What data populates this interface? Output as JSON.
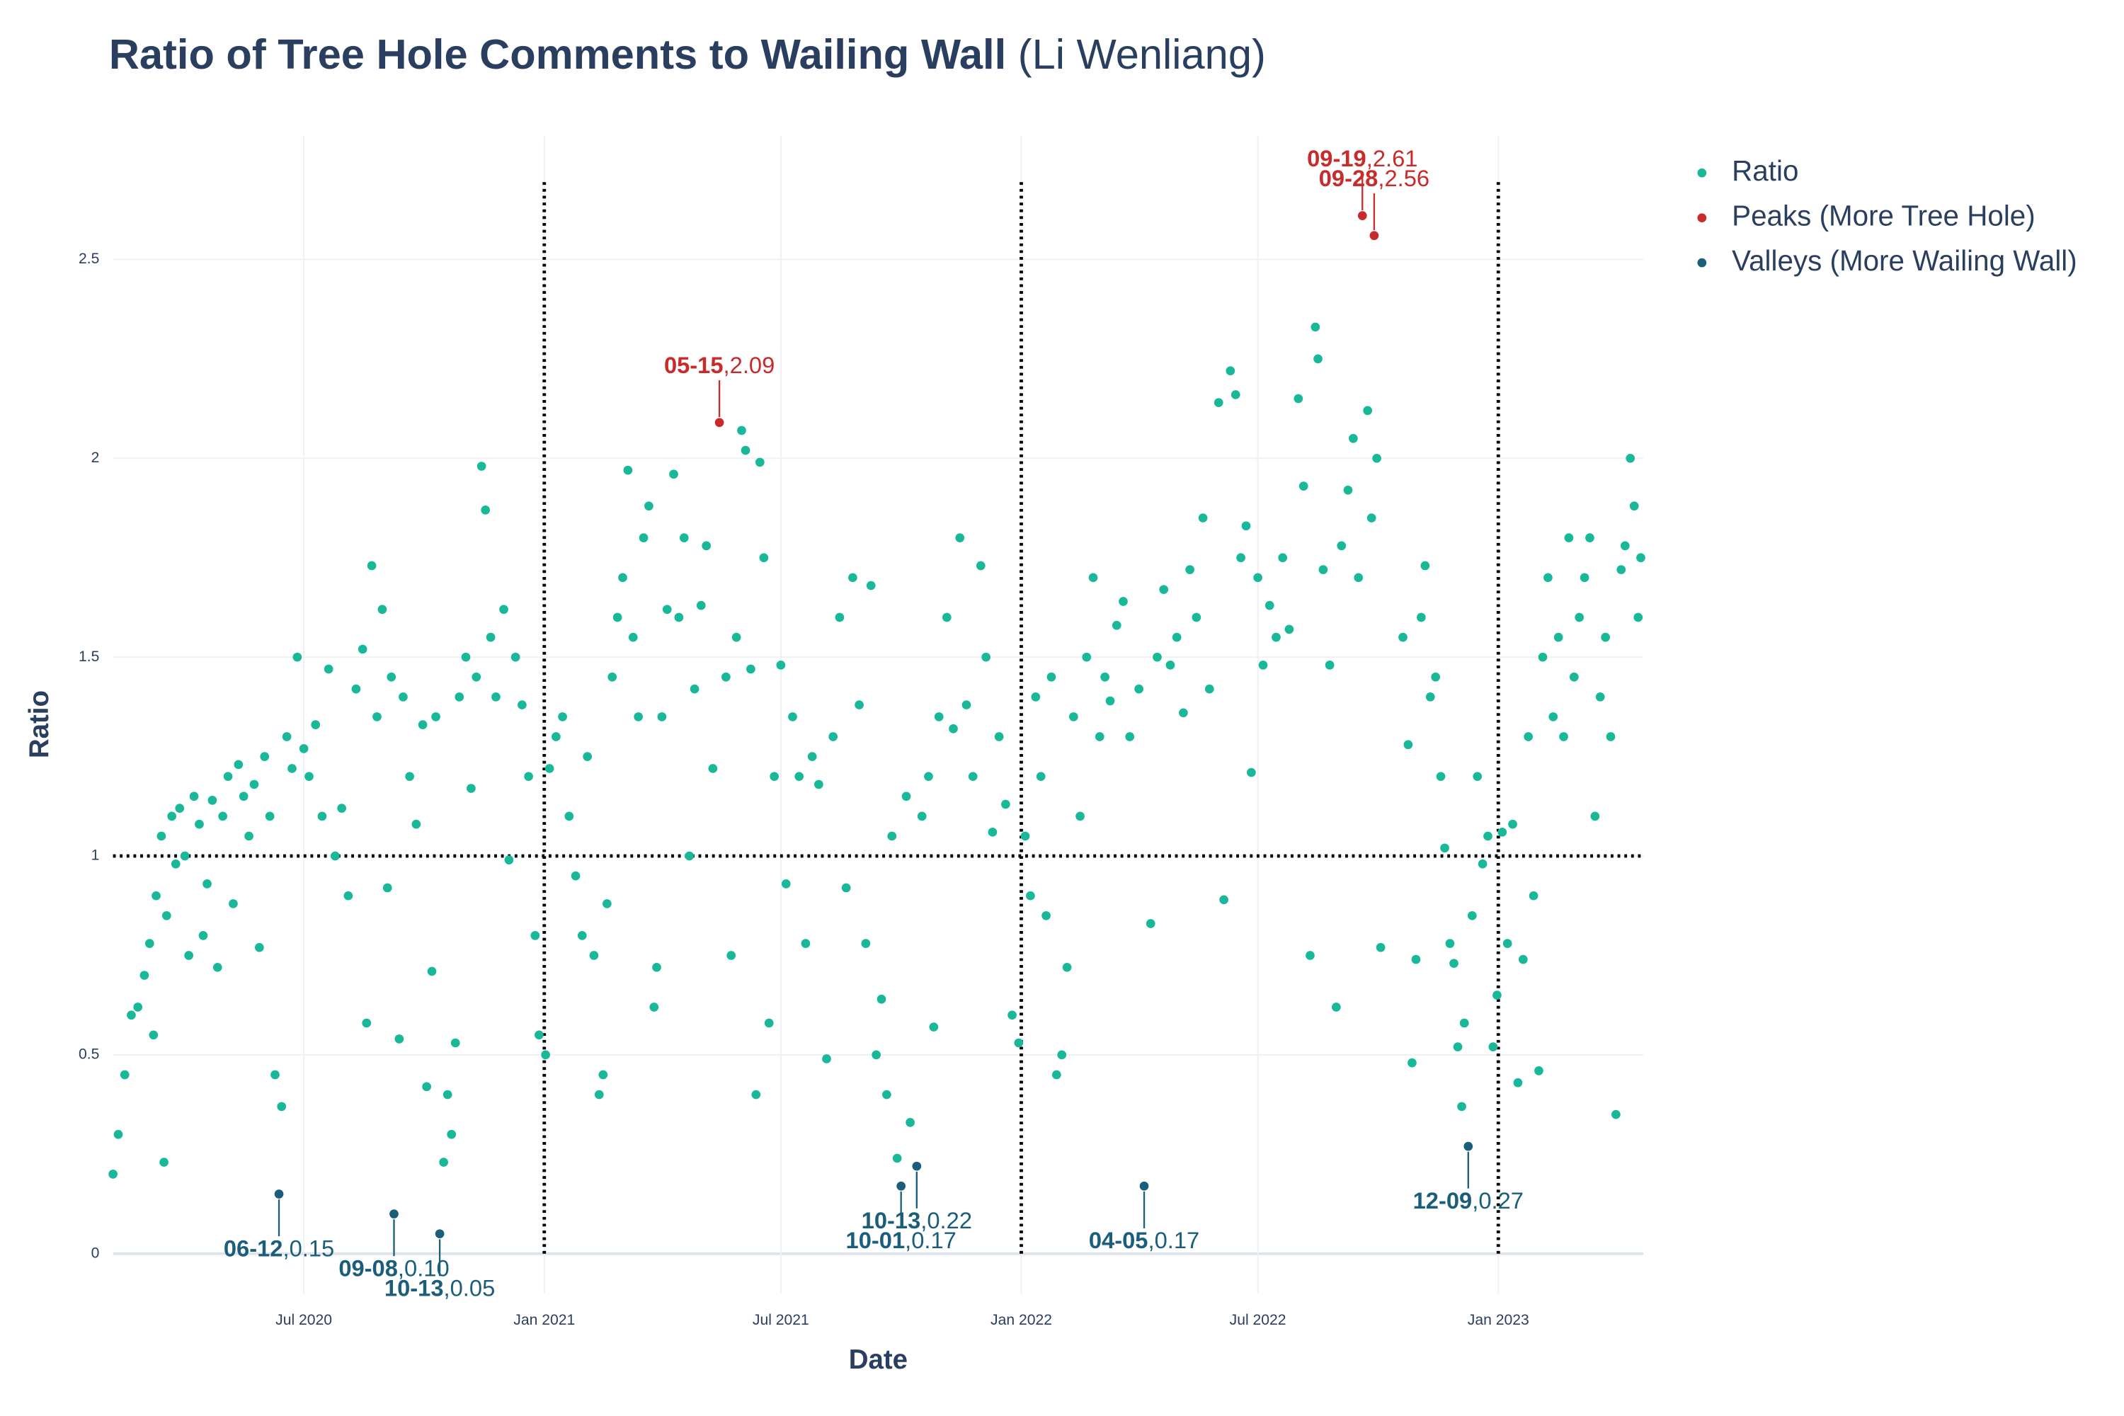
{
  "chart_data": {
    "type": "scatter",
    "title": "Ratio of Tree Hole Comments to Wailing Wall",
    "title_suffix": "(Li Wenliang)",
    "x_label": "Date",
    "y_label": "Ratio",
    "xlim": [
      "2020-02-06",
      "2023-04-22"
    ],
    "ylim": [
      -0.1,
      2.81
    ],
    "xticks": [
      {
        "value": "2020-07-01",
        "label": "Jul 2020"
      },
      {
        "value": "2021-01-01",
        "label": "Jan 2021"
      },
      {
        "value": "2021-07-01",
        "label": "Jul 2021"
      },
      {
        "value": "2022-01-01",
        "label": "Jan 2022"
      },
      {
        "value": "2022-07-01",
        "label": "Jul 2022"
      },
      {
        "value": "2023-01-01",
        "label": "Jan 2023"
      }
    ],
    "yticks": [
      0,
      0.5,
      1,
      1.5,
      2,
      2.5
    ],
    "grid": true,
    "hline": 1,
    "vlines": [
      "2021-01-01",
      "2022-01-01",
      "2023-01-01"
    ],
    "vline_range": [
      0,
      2.7
    ],
    "legend": "right",
    "label_separator": ",",
    "series": [
      {
        "name": "Ratio",
        "color": "#19b898",
        "x": [
          "2020-02-06",
          "2020-02-10",
          "2020-02-15",
          "2020-02-20",
          "2020-02-25",
          "2020-03-01",
          "2020-03-05",
          "2020-03-08",
          "2020-03-10",
          "2020-03-14",
          "2020-03-16",
          "2020-03-18",
          "2020-03-22",
          "2020-03-25",
          "2020-03-28",
          "2020-04-01",
          "2020-04-04",
          "2020-04-08",
          "2020-04-12",
          "2020-04-15",
          "2020-04-18",
          "2020-04-22",
          "2020-04-26",
          "2020-04-30",
          "2020-05-04",
          "2020-05-08",
          "2020-05-12",
          "2020-05-16",
          "2020-05-20",
          "2020-05-24",
          "2020-05-28",
          "2020-06-01",
          "2020-06-05",
          "2020-06-09",
          "2020-06-14",
          "2020-06-18",
          "2020-06-22",
          "2020-06-26",
          "2020-07-01",
          "2020-07-05",
          "2020-07-10",
          "2020-07-15",
          "2020-07-20",
          "2020-07-25",
          "2020-07-30",
          "2020-08-04",
          "2020-08-10",
          "2020-08-15",
          "2020-08-18",
          "2020-08-22",
          "2020-08-26",
          "2020-08-30",
          "2020-09-03",
          "2020-09-06",
          "2020-09-12",
          "2020-09-15",
          "2020-09-20",
          "2020-09-25",
          "2020-09-30",
          "2020-10-03",
          "2020-10-07",
          "2020-10-10",
          "2020-10-16",
          "2020-10-19",
          "2020-10-22",
          "2020-10-25",
          "2020-10-28",
          "2020-11-02",
          "2020-11-06",
          "2020-11-10",
          "2020-11-14",
          "2020-11-17",
          "2020-11-21",
          "2020-11-25",
          "2020-12-01",
          "2020-12-05",
          "2020-12-10",
          "2020-12-15",
          "2020-12-20",
          "2020-12-25",
          "2020-12-28",
          "2021-01-02",
          "2021-01-05",
          "2021-01-10",
          "2021-01-15",
          "2021-01-20",
          "2021-01-25",
          "2021-01-30",
          "2021-02-03",
          "2021-02-08",
          "2021-02-12",
          "2021-02-15",
          "2021-02-18",
          "2021-02-22",
          "2021-02-26",
          "2021-03-02",
          "2021-03-06",
          "2021-03-10",
          "2021-03-14",
          "2021-03-18",
          "2021-03-22",
          "2021-03-26",
          "2021-03-28",
          "2021-04-01",
          "2021-04-05",
          "2021-04-10",
          "2021-04-14",
          "2021-04-18",
          "2021-04-22",
          "2021-04-26",
          "2021-05-01",
          "2021-05-05",
          "2021-05-10",
          "2021-05-20",
          "2021-05-24",
          "2021-05-28",
          "2021-06-01",
          "2021-06-04",
          "2021-06-08",
          "2021-06-12",
          "2021-06-15",
          "2021-06-18",
          "2021-06-22",
          "2021-06-26",
          "2021-07-01",
          "2021-07-05",
          "2021-07-10",
          "2021-07-15",
          "2021-07-20",
          "2021-07-25",
          "2021-07-30",
          "2021-08-05",
          "2021-08-10",
          "2021-08-15",
          "2021-08-20",
          "2021-08-25",
          "2021-08-30",
          "2021-09-04",
          "2021-09-08",
          "2021-09-12",
          "2021-09-16",
          "2021-09-20",
          "2021-09-24",
          "2021-09-28",
          "2021-10-05",
          "2021-10-08",
          "2021-10-17",
          "2021-10-22",
          "2021-10-26",
          "2021-10-30",
          "2021-11-05",
          "2021-11-10",
          "2021-11-15",
          "2021-11-20",
          "2021-11-25",
          "2021-12-01",
          "2021-12-05",
          "2021-12-10",
          "2021-12-15",
          "2021-12-20",
          "2021-12-25",
          "2021-12-30",
          "2022-01-04",
          "2022-01-08",
          "2022-01-12",
          "2022-01-16",
          "2022-01-20",
          "2022-01-24",
          "2022-01-28",
          "2022-02-01",
          "2022-02-05",
          "2022-02-10",
          "2022-02-15",
          "2022-02-20",
          "2022-02-25",
          "2022-03-02",
          "2022-03-06",
          "2022-03-10",
          "2022-03-15",
          "2022-03-20",
          "2022-03-25",
          "2022-04-01",
          "2022-04-10",
          "2022-04-15",
          "2022-04-20",
          "2022-04-25",
          "2022-04-30",
          "2022-05-05",
          "2022-05-10",
          "2022-05-15",
          "2022-05-20",
          "2022-05-25",
          "2022-06-01",
          "2022-06-05",
          "2022-06-10",
          "2022-06-14",
          "2022-06-18",
          "2022-06-22",
          "2022-06-26",
          "2022-07-01",
          "2022-07-05",
          "2022-07-10",
          "2022-07-15",
          "2022-07-20",
          "2022-07-25",
          "2022-08-01",
          "2022-08-05",
          "2022-08-10",
          "2022-08-14",
          "2022-08-16",
          "2022-08-20",
          "2022-08-25",
          "2022-08-30",
          "2022-09-03",
          "2022-09-08",
          "2022-09-12",
          "2022-09-16",
          "2022-09-23",
          "2022-09-26",
          "2022-09-30",
          "2022-10-03",
          "2022-10-20",
          "2022-10-24",
          "2022-10-27",
          "2022-10-30",
          "2022-11-03",
          "2022-11-06",
          "2022-11-10",
          "2022-11-14",
          "2022-11-18",
          "2022-11-21",
          "2022-11-25",
          "2022-11-28",
          "2022-12-01",
          "2022-12-04",
          "2022-12-06",
          "2022-12-12",
          "2022-12-16",
          "2022-12-20",
          "2022-12-24",
          "2022-12-28",
          "2022-12-31",
          "2023-01-04",
          "2023-01-08",
          "2023-01-12",
          "2023-01-16",
          "2023-01-20",
          "2023-01-24",
          "2023-01-28",
          "2023-02-01",
          "2023-02-04",
          "2023-02-08",
          "2023-02-12",
          "2023-02-16",
          "2023-02-20",
          "2023-02-24",
          "2023-02-28",
          "2023-03-04",
          "2023-03-08",
          "2023-03-12",
          "2023-03-16",
          "2023-03-20",
          "2023-03-24",
          "2023-03-28",
          "2023-04-01",
          "2023-04-05",
          "2023-04-08",
          "2023-04-12",
          "2023-04-15",
          "2023-04-18",
          "2023-04-20"
        ],
        "values": [
          0.2,
          0.3,
          0.45,
          0.6,
          0.62,
          0.7,
          0.78,
          0.55,
          0.9,
          1.05,
          0.23,
          0.85,
          1.1,
          0.98,
          1.12,
          1.0,
          0.75,
          1.15,
          1.08,
          0.8,
          0.93,
          1.14,
          0.72,
          1.1,
          1.2,
          0.88,
          1.23,
          1.15,
          1.05,
          1.18,
          0.77,
          1.25,
          1.1,
          0.45,
          0.37,
          1.3,
          1.22,
          1.5,
          1.27,
          1.2,
          1.33,
          1.1,
          1.47,
          1.0,
          1.12,
          0.9,
          1.42,
          1.52,
          0.58,
          1.73,
          1.35,
          1.62,
          0.92,
          1.45,
          0.54,
          1.4,
          1.2,
          1.08,
          1.33,
          0.42,
          0.71,
          1.35,
          0.23,
          0.4,
          0.3,
          0.53,
          1.4,
          1.5,
          1.17,
          1.45,
          1.98,
          1.87,
          1.55,
          1.4,
          1.62,
          0.99,
          1.5,
          1.38,
          1.2,
          0.8,
          0.55,
          0.5,
          1.22,
          1.3,
          1.35,
          1.1,
          0.95,
          0.8,
          1.25,
          0.75,
          0.4,
          0.45,
          0.88,
          1.45,
          1.6,
          1.7,
          1.97,
          1.55,
          1.35,
          1.8,
          1.88,
          0.62,
          0.72,
          1.35,
          1.62,
          1.96,
          1.6,
          1.8,
          1.0,
          1.42,
          1.63,
          1.78,
          1.22,
          1.45,
          0.75,
          1.55,
          2.07,
          2.02,
          1.47,
          0.4,
          1.99,
          1.75,
          0.58,
          1.2,
          1.48,
          0.93,
          1.35,
          1.2,
          0.78,
          1.25,
          1.18,
          0.49,
          1.3,
          1.6,
          0.92,
          1.7,
          1.38,
          0.78,
          1.68,
          0.5,
          0.64,
          0.4,
          1.05,
          0.24,
          1.15,
          0.33,
          1.1,
          1.2,
          0.57,
          1.35,
          1.6,
          1.32,
          1.8,
          1.38,
          1.2,
          1.73,
          1.5,
          1.06,
          1.3,
          1.13,
          0.6,
          0.53,
          1.05,
          0.9,
          1.4,
          1.2,
          0.85,
          1.45,
          0.45,
          0.5,
          0.72,
          1.35,
          1.1,
          1.5,
          1.7,
          1.3,
          1.45,
          1.39,
          1.58,
          1.64,
          1.3,
          1.42,
          0.83,
          1.5,
          1.67,
          1.48,
          1.55,
          1.36,
          1.72,
          1.6,
          1.85,
          1.42,
          2.14,
          0.89,
          2.22,
          2.16,
          1.75,
          1.83,
          1.21,
          1.7,
          1.48,
          1.63,
          1.55,
          1.75,
          1.57,
          2.15,
          1.93,
          0.75,
          2.33,
          2.25,
          1.72,
          1.48,
          0.62,
          1.78,
          1.92,
          2.05,
          1.7,
          2.12,
          1.85,
          2.0,
          0.77,
          1.55,
          1.28,
          0.48,
          0.74,
          1.6,
          1.73,
          1.4,
          1.45,
          1.2,
          1.02,
          0.78,
          0.73,
          0.52,
          0.37,
          0.58,
          0.85,
          1.2,
          0.98,
          1.05,
          0.52,
          0.65,
          1.06,
          0.78,
          1.08,
          0.43,
          0.74,
          1.3,
          0.9,
          0.46,
          1.5,
          1.7,
          1.35,
          1.55,
          1.3,
          1.8,
          1.45,
          1.6,
          1.7,
          1.8,
          1.1,
          1.4,
          1.55,
          1.3,
          0.35,
          1.72,
          1.78,
          2.0,
          1.88,
          1.6,
          1.75
        ]
      },
      {
        "name": "Peaks (More Tree Hole)",
        "color": "#c92a2a",
        "side": "above",
        "x": [
          "2021-05-15",
          "2022-09-19",
          "2022-09-28"
        ],
        "labels": [
          "05-15",
          "09-19",
          "09-28"
        ],
        "values": [
          2.09,
          2.61,
          2.56
        ],
        "value_labels": [
          "2.09",
          "2.61",
          "2.56"
        ]
      },
      {
        "name": "Valleys (More Wailing Wall)",
        "color": "#1b5e7b",
        "side": "below",
        "x": [
          "2020-06-12",
          "2020-09-08",
          "2020-10-13",
          "2021-10-01",
          "2021-10-13",
          "2022-04-05",
          "2022-12-09"
        ],
        "labels": [
          "06-12",
          "09-08",
          "10-13",
          "10-01",
          "10-13",
          "04-05",
          "12-09"
        ],
        "values": [
          0.15,
          0.1,
          0.05,
          0.17,
          0.22,
          0.17,
          0.27
        ],
        "value_labels": [
          "0.15",
          "0.10",
          "0.05",
          "0.17",
          "0.22",
          "0.17",
          "0.27"
        ]
      }
    ]
  }
}
